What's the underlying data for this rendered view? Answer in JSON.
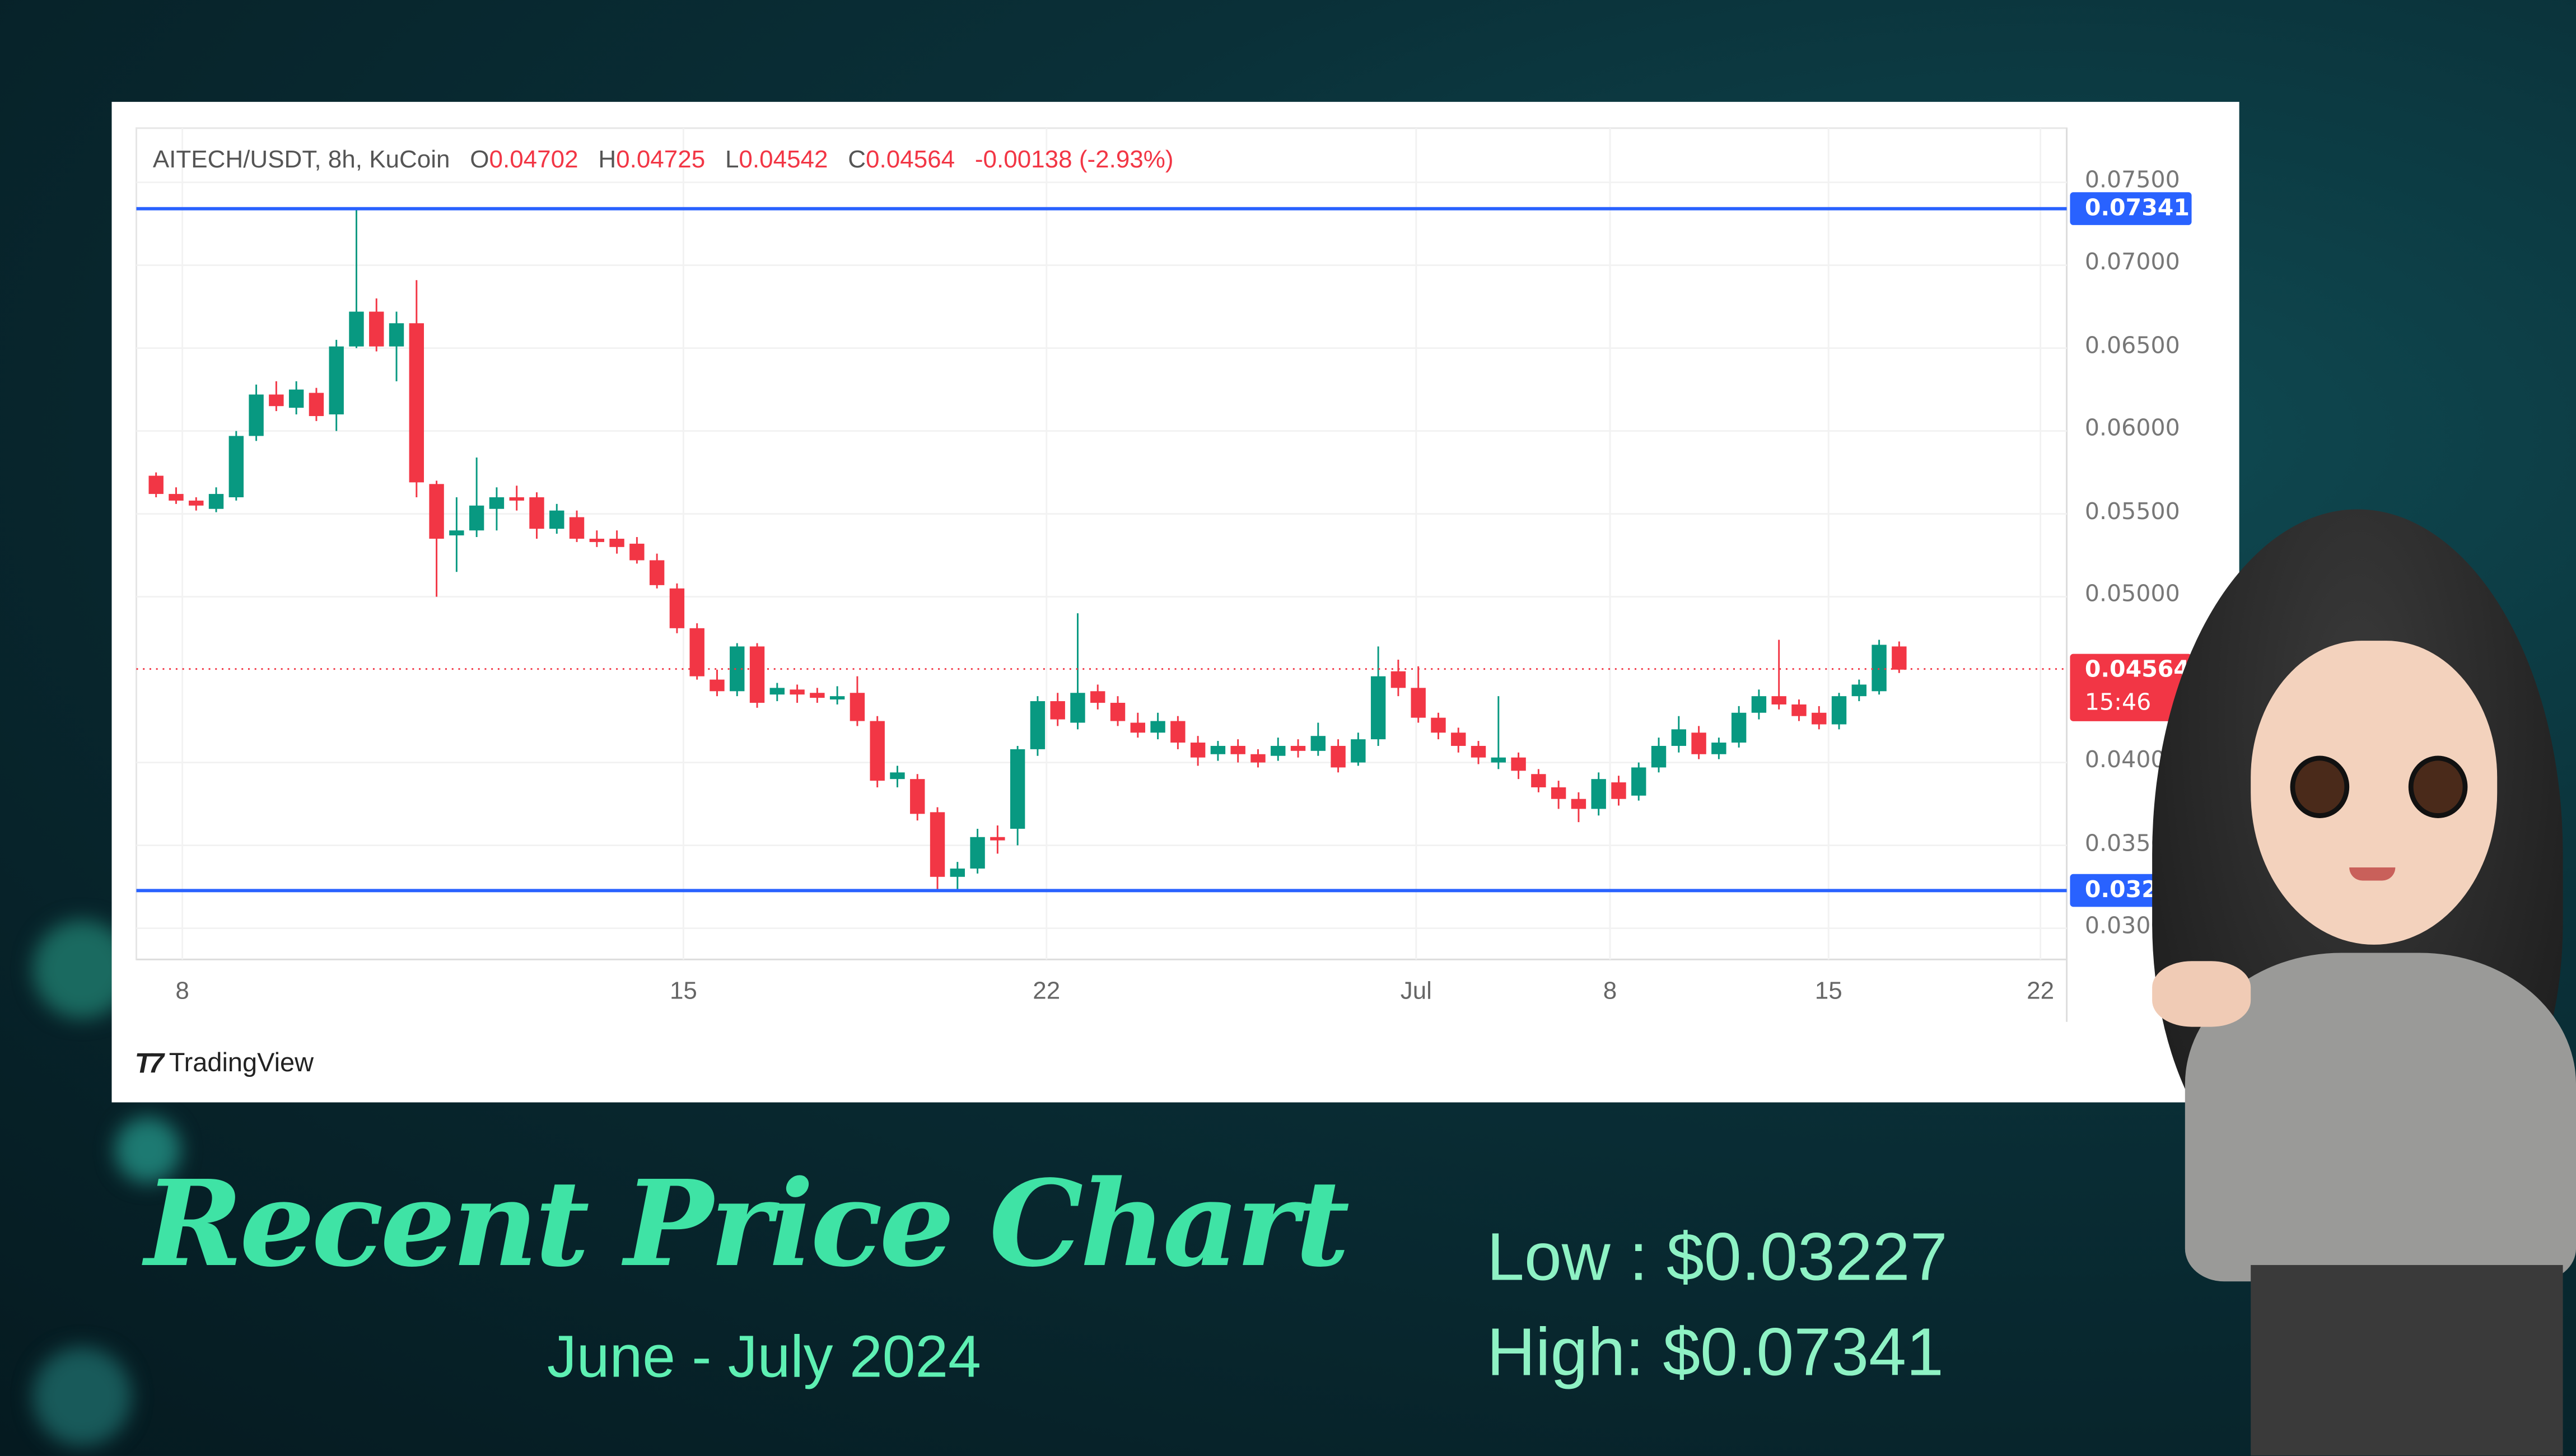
{
  "header": {
    "symbol": "AITECH/USDT, 8h, KuCoin",
    "o_label": "O",
    "o": "0.04702",
    "h_label": "H",
    "h": "0.04725",
    "l_label": "L",
    "l": "0.04542",
    "c_label": "C",
    "c": "0.04564",
    "change": "-0.00138 (-2.93%)"
  },
  "price_tags": {
    "high": "0.07341",
    "low": "0.03227",
    "last": "0.04564",
    "countdown": "15:46"
  },
  "branding": "TradingView",
  "footer": {
    "title": "Recent Price Chart",
    "subtitle": "June - July 2024",
    "low": "Low : $0.03227",
    "high": "High: $0.07341"
  },
  "colors": {
    "up": "#089981",
    "down": "#f23645",
    "line": "#2962ff",
    "title": "#3fe3a5"
  },
  "chart_data": {
    "type": "candlestick",
    "title": "AITECH/USDT, 8h, KuCoin",
    "ylim": [
      0.03,
      0.075
    ],
    "yticks": [
      "0.07500",
      "0.07000",
      "0.06500",
      "0.06000",
      "0.05500",
      "0.05000",
      "0.04000",
      "0.03500",
      "0.03000"
    ],
    "xticks": [
      "8",
      "15",
      "22",
      "Jul",
      "8",
      "15",
      "22"
    ],
    "hlines": [
      {
        "label": "High",
        "value": 0.07341
      },
      {
        "label": "Low",
        "value": 0.03227
      },
      {
        "label": "Last",
        "value": 0.04564
      }
    ],
    "ohlc": [
      [
        0.0573,
        0.0575,
        0.056,
        0.0562
      ],
      [
        0.0562,
        0.0566,
        0.0556,
        0.0558
      ],
      [
        0.0558,
        0.056,
        0.0552,
        0.0555
      ],
      [
        0.0553,
        0.0566,
        0.0551,
        0.0562
      ],
      [
        0.056,
        0.06,
        0.0558,
        0.0597
      ],
      [
        0.0597,
        0.0628,
        0.0594,
        0.0622
      ],
      [
        0.0622,
        0.063,
        0.0612,
        0.0615
      ],
      [
        0.0614,
        0.063,
        0.061,
        0.0625
      ],
      [
        0.0623,
        0.0626,
        0.0606,
        0.0609
      ],
      [
        0.061,
        0.0655,
        0.06,
        0.0651
      ],
      [
        0.0651,
        0.0734,
        0.065,
        0.0672
      ],
      [
        0.0672,
        0.068,
        0.0648,
        0.0651
      ],
      [
        0.0651,
        0.0672,
        0.063,
        0.0665
      ],
      [
        0.0665,
        0.0691,
        0.056,
        0.0569
      ],
      [
        0.0568,
        0.057,
        0.05,
        0.0535
      ],
      [
        0.0537,
        0.056,
        0.0515,
        0.054
      ],
      [
        0.054,
        0.0584,
        0.0536,
        0.0555
      ],
      [
        0.0553,
        0.0566,
        0.054,
        0.056
      ],
      [
        0.056,
        0.0567,
        0.0552,
        0.0558
      ],
      [
        0.056,
        0.0563,
        0.0535,
        0.0541
      ],
      [
        0.0541,
        0.0556,
        0.0538,
        0.0552
      ],
      [
        0.0548,
        0.0552,
        0.0533,
        0.0535
      ],
      [
        0.0535,
        0.054,
        0.053,
        0.0533
      ],
      [
        0.0535,
        0.054,
        0.0526,
        0.053
      ],
      [
        0.0532,
        0.0536,
        0.052,
        0.0522
      ],
      [
        0.0522,
        0.0526,
        0.0505,
        0.0507
      ],
      [
        0.0505,
        0.0508,
        0.0478,
        0.0481
      ],
      [
        0.0481,
        0.0484,
        0.045,
        0.0452
      ],
      [
        0.045,
        0.0456,
        0.044,
        0.0443
      ],
      [
        0.0443,
        0.0472,
        0.044,
        0.047
      ],
      [
        0.047,
        0.0472,
        0.0433,
        0.0436
      ],
      [
        0.0441,
        0.0448,
        0.0437,
        0.0445
      ],
      [
        0.0444,
        0.0447,
        0.0436,
        0.0441
      ],
      [
        0.0442,
        0.0445,
        0.0436,
        0.0439
      ],
      [
        0.0438,
        0.0446,
        0.0435,
        0.044
      ],
      [
        0.0442,
        0.0452,
        0.0422,
        0.0425
      ],
      [
        0.0425,
        0.0428,
        0.0385,
        0.0389
      ],
      [
        0.039,
        0.0398,
        0.0385,
        0.0394
      ],
      [
        0.039,
        0.0393,
        0.0365,
        0.0369
      ],
      [
        0.037,
        0.0373,
        0.0322,
        0.0331
      ],
      [
        0.0331,
        0.034,
        0.0323,
        0.0336
      ],
      [
        0.0336,
        0.036,
        0.0333,
        0.0355
      ],
      [
        0.0355,
        0.0362,
        0.0345,
        0.0353
      ],
      [
        0.036,
        0.041,
        0.035,
        0.0408
      ],
      [
        0.0408,
        0.044,
        0.0404,
        0.0437
      ],
      [
        0.0437,
        0.0442,
        0.0422,
        0.0426
      ],
      [
        0.0424,
        0.049,
        0.042,
        0.0442
      ],
      [
        0.0443,
        0.0447,
        0.0432,
        0.0436
      ],
      [
        0.0436,
        0.044,
        0.0422,
        0.0425
      ],
      [
        0.0424,
        0.043,
        0.0415,
        0.0418
      ],
      [
        0.0418,
        0.043,
        0.0414,
        0.0425
      ],
      [
        0.0425,
        0.0428,
        0.0408,
        0.0412
      ],
      [
        0.0412,
        0.0416,
        0.0398,
        0.0403
      ],
      [
        0.0405,
        0.0413,
        0.0401,
        0.041
      ],
      [
        0.041,
        0.0414,
        0.04,
        0.0405
      ],
      [
        0.0405,
        0.0408,
        0.0397,
        0.04
      ],
      [
        0.0404,
        0.0415,
        0.0401,
        0.041
      ],
      [
        0.041,
        0.0414,
        0.0403,
        0.0407
      ],
      [
        0.0407,
        0.0424,
        0.0404,
        0.0416
      ],
      [
        0.041,
        0.0414,
        0.0394,
        0.0397
      ],
      [
        0.04,
        0.0418,
        0.0398,
        0.0414
      ],
      [
        0.0414,
        0.047,
        0.041,
        0.0452
      ],
      [
        0.0455,
        0.0462,
        0.044,
        0.0445
      ],
      [
        0.0445,
        0.0458,
        0.0424,
        0.0427
      ],
      [
        0.0427,
        0.043,
        0.0414,
        0.0418
      ],
      [
        0.0418,
        0.0421,
        0.0406,
        0.041
      ],
      [
        0.041,
        0.0413,
        0.0399,
        0.0403
      ],
      [
        0.04,
        0.044,
        0.0396,
        0.0403
      ],
      [
        0.0403,
        0.0406,
        0.039,
        0.0395
      ],
      [
        0.0393,
        0.0396,
        0.0382,
        0.0385
      ],
      [
        0.0385,
        0.0389,
        0.0372,
        0.0378
      ],
      [
        0.0378,
        0.0382,
        0.0364,
        0.0372
      ],
      [
        0.0372,
        0.0394,
        0.0368,
        0.039
      ],
      [
        0.0388,
        0.0392,
        0.0374,
        0.0378
      ],
      [
        0.038,
        0.04,
        0.0377,
        0.0397
      ],
      [
        0.0397,
        0.0415,
        0.0394,
        0.041
      ],
      [
        0.041,
        0.0428,
        0.0406,
        0.042
      ],
      [
        0.0418,
        0.0422,
        0.0402,
        0.0405
      ],
      [
        0.0405,
        0.0415,
        0.0402,
        0.0412
      ],
      [
        0.0412,
        0.0434,
        0.0409,
        0.043
      ],
      [
        0.043,
        0.0444,
        0.0426,
        0.044
      ],
      [
        0.044,
        0.0474,
        0.0432,
        0.0435
      ],
      [
        0.0435,
        0.0438,
        0.0425,
        0.0428
      ],
      [
        0.043,
        0.0434,
        0.042,
        0.0423
      ],
      [
        0.0423,
        0.0442,
        0.042,
        0.044
      ],
      [
        0.044,
        0.045,
        0.0437,
        0.0447
      ],
      [
        0.0443,
        0.0474,
        0.0441,
        0.0471
      ],
      [
        0.047,
        0.0473,
        0.0454,
        0.0456
      ]
    ]
  }
}
